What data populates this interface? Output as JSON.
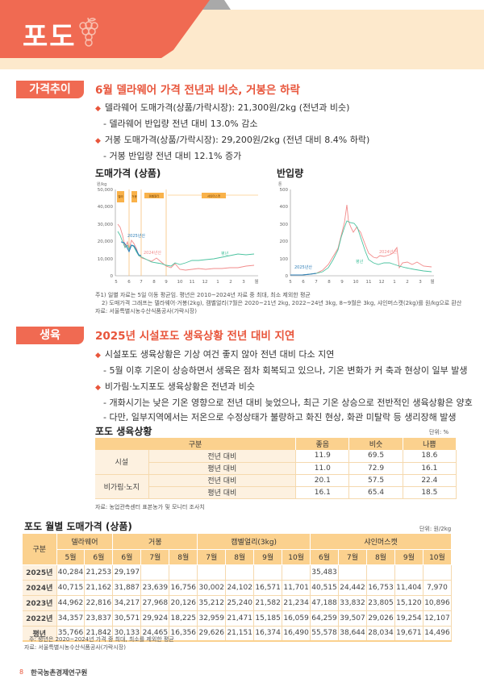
{
  "banner": {
    "title": "포도",
    "icon": "grape-icon"
  },
  "price_section": {
    "tag": "가격추이",
    "headline": "6월 델라웨어 가격 전년과 비슷, 거봉은 하락",
    "bullets": [
      {
        "text": "델라웨어 도매가격(상품/가락시장): 21,300원/2kg (전년과 비슷)",
        "sub": [
          "- 델라웨어 반입량 전년 대비 13.0% 감소"
        ]
      },
      {
        "text": "거봉 도매가격(상품/가락시장): 29,200원/2kg (전년 대비 8.4% 하락)",
        "sub": [
          "- 거봉 반입량 전년 대비 12.1% 증가"
        ]
      }
    ]
  },
  "chart_data": [
    {
      "type": "line",
      "title": "도매가격 (상품)",
      "ylabel": "원/kg",
      "xlabel": "월",
      "x_ticks": [
        "5",
        "6",
        "7",
        "8",
        "9",
        "10",
        "11",
        "12",
        "1",
        "2",
        "3",
        "월"
      ],
      "y_ticks": [
        "0",
        "10,000",
        "20,000",
        "30,000",
        "40,000",
        "50,000"
      ],
      "ylim": [
        0,
        50000
      ],
      "period_labels": [
        "델라웨어",
        "거봉",
        "캠벨얼리",
        "샤인머스캣"
      ],
      "series": [
        {
          "name": "2024년산",
          "color": "#f28b8b",
          "values": [
            30000,
            28000,
            22000,
            15000,
            20500,
            17000,
            12000,
            10000,
            9500,
            8500,
            9000,
            7500,
            6500,
            5500,
            5000,
            7000,
            4000,
            3500,
            4000,
            4500,
            5000,
            4500,
            4500,
            5000,
            4500,
            5500,
            4500,
            5000,
            6000
          ]
        },
        {
          "name": "평년",
          "color": "#4cc3a0",
          "values": [
            26000,
            22000,
            17000,
            14000,
            17500,
            16000,
            12500,
            9500,
            9000,
            8000,
            8000,
            7000,
            6000,
            5500,
            5500,
            6000,
            5000,
            7500,
            7000,
            8000,
            8500,
            9000,
            9000,
            9500,
            10000,
            11000,
            11500,
            12000,
            12000
          ]
        },
        {
          "name": "2025년산",
          "color": "#2f7fb8",
          "values": [
            20500,
            20000,
            15000,
            17000,
            16000,
            12500
          ]
        }
      ]
    },
    {
      "type": "line",
      "title": "반입량",
      "ylabel": "톤",
      "xlabel": "월",
      "x_ticks": [
        "5",
        "6",
        "7",
        "8",
        "9",
        "10",
        "11",
        "12",
        "1",
        "2",
        "3",
        "월"
      ],
      "y_ticks": [
        "0",
        "100",
        "200",
        "300",
        "400",
        "500"
      ],
      "ylim": [
        0,
        500
      ],
      "series": [
        {
          "name": "2024년산",
          "color": "#f28b8b",
          "values": [
            5,
            5,
            5,
            10,
            40,
            70,
            130,
            190,
            280,
            430,
            300,
            290,
            260,
            170,
            100,
            70,
            80,
            90,
            110,
            150,
            50,
            80,
            70,
            60,
            45
          ]
        },
        {
          "name": "평년",
          "color": "#4cc3a0",
          "values": [
            5,
            5,
            5,
            10,
            30,
            60,
            120,
            180,
            260,
            310,
            300,
            250,
            180,
            100,
            60,
            50,
            55,
            65,
            55,
            45,
            40,
            30,
            20,
            15,
            10
          ]
        },
        {
          "name": "2025년산",
          "color": "#2f7fb8",
          "values": [
            5,
            5,
            5,
            8,
            12
          ]
        }
      ]
    }
  ],
  "chart_notes": [
    "주1) 일별 자료는 5일 이동 평균임. 평년은 2010~2024년 자료 중 최대, 최소 제외한 평균",
    "2) 도매가격 그래프는 델라웨어·거봉(2kg), 캠벨얼리(7월은 2020~21년 2kg, 2022~24년 3kg, 8~9월은 3kg, 샤인머스캣(2kg)를 원/kg으로 환산",
    "자료: 서울특별시농수산식품공사(가락시장)"
  ],
  "growth_section": {
    "tag": "생육",
    "headline": "2025년 시설포도 생육상황 전년 대비 지연",
    "bullets": [
      {
        "text": "시설포도 생육상황은 기상 여건 좋지 않아 전년 대비 다소 지연",
        "sub": [
          "- 5월 이후 기온이 상승하면서 생육은 점차 회복되고 있으나, 기온 변화가 커 축과 현상이 일부 발생"
        ]
      },
      {
        "text": "비가림·노지포도 생육상황은 전년과 비슷",
        "sub": [
          "- 개화시기는 낮은 기온 영향으로 전년 대비 늦었으나, 최근 기온 상승으로 전반적인 생육상황은 양호",
          "- 다만, 일부지역에서는 저온으로 수정상태가 불량하고 화진 현상, 화관 미탈락 등 생리장해 발생"
        ]
      }
    ]
  },
  "growth_table": {
    "title": "포도 생육상황",
    "unit": "단위: %",
    "headers": [
      "구분",
      "좋음",
      "비슷",
      "나쁨"
    ],
    "groups": [
      {
        "name": "시설",
        "rows": [
          {
            "label": "전년 대비",
            "values": [
              "11.9",
              "69.5",
              "18.6"
            ]
          },
          {
            "label": "평년 대비",
            "values": [
              "11.0",
              "72.9",
              "16.1"
            ]
          }
        ]
      },
      {
        "name": "비가림·노지",
        "rows": [
          {
            "label": "전년 대비",
            "values": [
              "20.1",
              "57.5",
              "22.4"
            ]
          },
          {
            "label": "평년 대비",
            "values": [
              "16.1",
              "65.4",
              "18.5"
            ]
          }
        ]
      }
    ],
    "source": "자료: 농업관측센터 표본농가 및 모니터 조사치"
  },
  "price_table": {
    "title": "포도 월별 도매가격 (상품)",
    "unit": "단위: 원/2kg",
    "corner": "구분",
    "varieties": [
      {
        "name": "델라웨어",
        "months": [
          "5월",
          "6월"
        ]
      },
      {
        "name": "거봉",
        "months": [
          "6월",
          "7월",
          "8월"
        ]
      },
      {
        "name": "캠벨얼리(3kg)",
        "months": [
          "7월",
          "8월",
          "9월",
          "10월"
        ]
      },
      {
        "name": "샤인머스캣",
        "months": [
          "6월",
          "7월",
          "8월",
          "9월",
          "10월"
        ]
      }
    ],
    "rows": [
      {
        "year": "2025년",
        "values": [
          "40,284",
          "21,253",
          "29,197",
          "",
          "",
          "",
          "",
          "",
          "",
          "35,483",
          "",
          "",
          "",
          ""
        ]
      },
      {
        "year": "2024년",
        "values": [
          "40,715",
          "21,162",
          "31,887",
          "23,639",
          "16,756",
          "30,002",
          "24,102",
          "16,571",
          "11,701",
          "40,515",
          "24,442",
          "16,753",
          "11,404",
          "7,970"
        ]
      },
      {
        "year": "2023년",
        "values": [
          "44,962",
          "22,816",
          "34,217",
          "27,968",
          "20,126",
          "35,212",
          "25,240",
          "21,582",
          "21,234",
          "47,188",
          "33,832",
          "23,805",
          "15,120",
          "10,896"
        ]
      },
      {
        "year": "2022년",
        "values": [
          "34,357",
          "23,837",
          "30,571",
          "29,924",
          "18,225",
          "32,959",
          "21,471",
          "15,185",
          "16,059",
          "64,259",
          "39,507",
          "29,026",
          "19,254",
          "12,107"
        ]
      },
      {
        "year": "평년",
        "values": [
          "35,766",
          "21,842",
          "30,133",
          "24,465",
          "16,356",
          "29,626",
          "21,151",
          "16,374",
          "16,490",
          "55,578",
          "38,644",
          "28,034",
          "19,671",
          "14,496"
        ]
      }
    ],
    "notes": [
      "주: 평년은 2020~2024년 가격 중 최대, 최소를 제외한 평균",
      "자료: 서울특별시농수산식품공사(가락시장)"
    ]
  },
  "footer": {
    "page": "8",
    "org": "한국농촌경제연구원"
  }
}
